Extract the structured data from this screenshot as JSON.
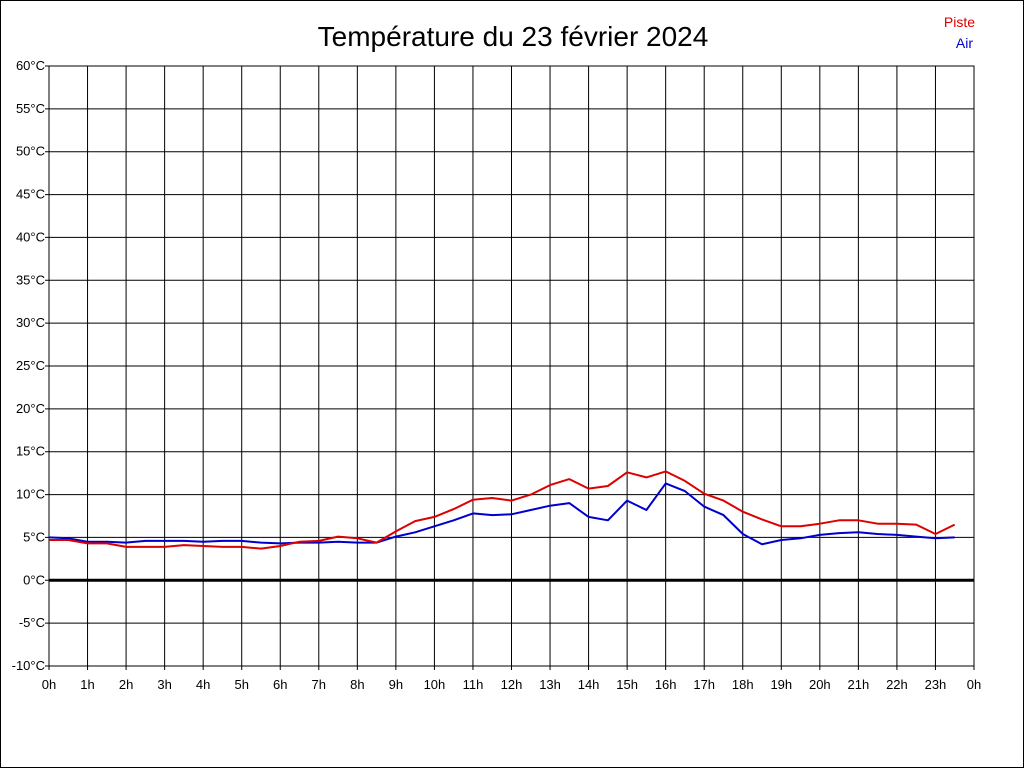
{
  "chart_data": {
    "type": "line",
    "title": "Température du 23 février 2024",
    "xlabel": "",
    "ylabel": "",
    "ylim": [
      -10,
      60
    ],
    "xlim": [
      0,
      24
    ],
    "y_ticks": [
      "-10°C",
      "-5°C",
      "0°C",
      "5°C",
      "10°C",
      "15°C",
      "20°C",
      "25°C",
      "30°C",
      "35°C",
      "40°C",
      "45°C",
      "50°C",
      "55°C",
      "60°C"
    ],
    "x_ticks": [
      "0h",
      "1h",
      "2h",
      "3h",
      "4h",
      "5h",
      "6h",
      "7h",
      "8h",
      "9h",
      "10h",
      "11h",
      "12h",
      "13h",
      "14h",
      "15h",
      "16h",
      "17h",
      "18h",
      "19h",
      "20h",
      "21h",
      "22h",
      "23h",
      "0h"
    ],
    "grid": true,
    "zero_line": true,
    "legend_position": "top-right",
    "x_unit_hours": [
      0,
      0.5,
      1,
      1.5,
      2,
      2.5,
      3,
      3.5,
      4,
      4.5,
      5,
      5.5,
      6,
      6.5,
      7,
      7.5,
      8,
      8.5,
      9,
      9.5,
      10,
      10.5,
      11,
      11.5,
      12,
      12.5,
      13,
      13.5,
      14,
      14.5,
      15,
      15.5,
      16,
      16.5,
      17,
      17.5,
      18,
      18.5,
      19,
      19.5,
      20,
      20.5,
      21,
      21.5,
      22,
      22.5,
      23,
      23.5
    ],
    "series": [
      {
        "name": "Piste",
        "color": "#dd0000",
        "values": [
          4.7,
          4.7,
          4.3,
          4.3,
          3.9,
          3.9,
          3.9,
          4.1,
          4.0,
          3.9,
          3.9,
          3.7,
          4.0,
          4.5,
          4.6,
          5.1,
          4.9,
          4.4,
          5.7,
          6.9,
          7.4,
          8.3,
          9.4,
          9.6,
          9.3,
          10.0,
          11.1,
          11.8,
          10.7,
          11.0,
          12.6,
          12.0,
          12.7,
          11.6,
          10.1,
          9.3,
          8.0,
          7.1,
          6.3,
          6.3,
          6.6,
          7.0,
          7.0,
          6.6,
          6.6,
          6.5,
          5.4,
          6.5
        ]
      },
      {
        "name": "Air",
        "color": "#0000cc",
        "values": [
          5.0,
          4.9,
          4.5,
          4.5,
          4.4,
          4.6,
          4.6,
          4.6,
          4.5,
          4.6,
          4.6,
          4.4,
          4.3,
          4.4,
          4.4,
          4.5,
          4.4,
          4.4,
          5.1,
          5.6,
          6.3,
          7.0,
          7.8,
          7.6,
          7.7,
          8.2,
          8.7,
          9.0,
          7.4,
          7.0,
          9.3,
          8.2,
          11.3,
          10.4,
          8.6,
          7.6,
          5.4,
          4.2,
          4.7,
          4.9,
          5.3,
          5.5,
          5.6,
          5.4,
          5.3,
          5.1,
          4.9,
          5.0
        ]
      }
    ]
  }
}
